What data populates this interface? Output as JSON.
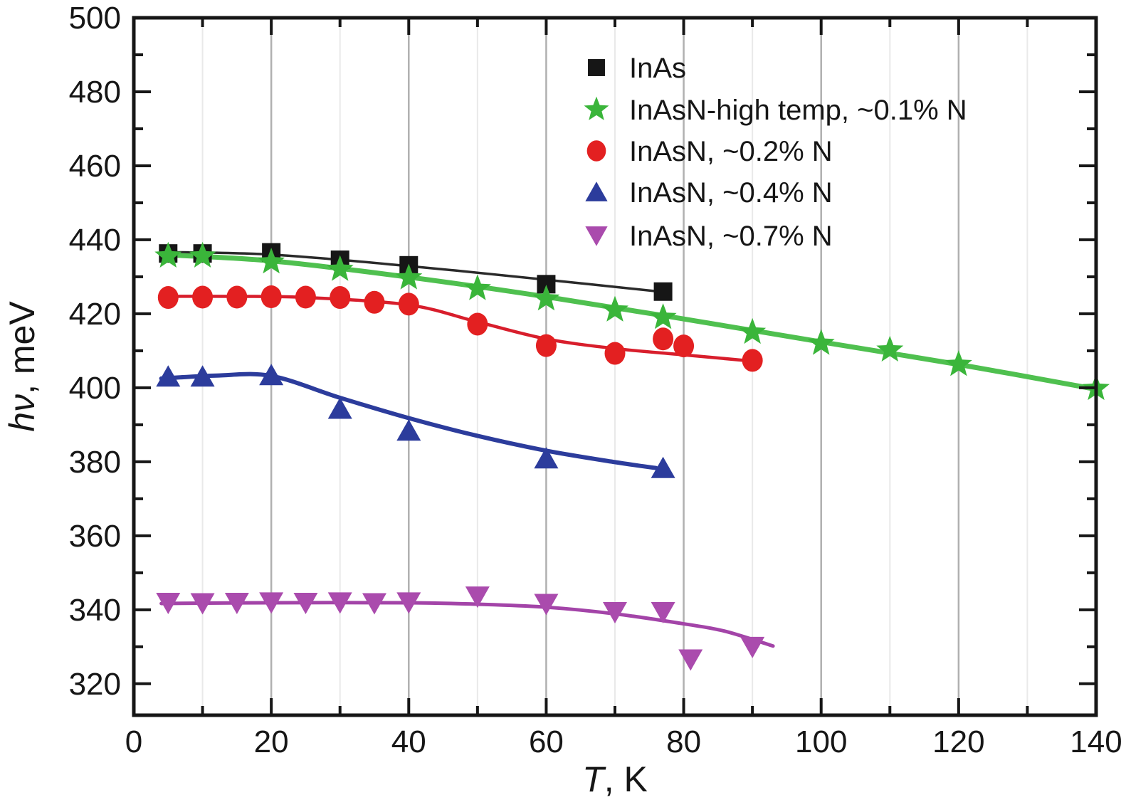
{
  "figure": {
    "background": "#ffffff",
    "axis_color": "#161616",
    "grid_major_color": "#b0b0b0",
    "grid_minor_color": "#e9e9e9"
  },
  "chart_data": {
    "type": "scatter",
    "title": "",
    "xlabel": "T, K",
    "ylabel": "hν, meV",
    "xlabel_parts": {
      "italic": "T",
      "rest": ", K"
    },
    "ylabel_parts": {
      "italic": "hν",
      "rest": ", meV"
    },
    "x_axis": {
      "min": 0,
      "max": 140,
      "major_step": 20,
      "minor_step": 10,
      "tick_labels": [
        "0",
        "20",
        "40",
        "60",
        "80",
        "100",
        "120",
        "140"
      ]
    },
    "y_axis": {
      "min": 311.5,
      "max": 500,
      "major_step": 20,
      "minor_step": 10,
      "tick_labels": [
        "320",
        "340",
        "360",
        "380",
        "400",
        "420",
        "440",
        "460",
        "480",
        "500"
      ]
    },
    "grid": {
      "vertical_major": true,
      "vertical_minor": true,
      "horizontal": false
    },
    "legend_position": "top-right-inside",
    "series": [
      {
        "name": "InAs",
        "legend_label": "InAs",
        "marker": "square",
        "color": "#161616",
        "line_color": "#2a2a2a",
        "line_width": 3.5,
        "points": [
          [
            5,
            436.3
          ],
          [
            10,
            436.3
          ],
          [
            20,
            436.6
          ],
          [
            30,
            434.6
          ],
          [
            40,
            433.1
          ],
          [
            60,
            428.0
          ],
          [
            77,
            426.0
          ]
        ],
        "line": [
          [
            4,
            436.7
          ],
          [
            20,
            436.0
          ],
          [
            40,
            432.9
          ],
          [
            60,
            429.2
          ],
          [
            78,
            425.7
          ]
        ]
      },
      {
        "name": "InAsN-high-temp-0.1N",
        "legend_label": "InAsN-high temp, ~0.1% N",
        "marker": "star",
        "color": "#3ab53a",
        "line_color": "#4fc04f",
        "line_width": 7,
        "points": [
          [
            5,
            435.6
          ],
          [
            10,
            435.6
          ],
          [
            20,
            434.0
          ],
          [
            30,
            432.0
          ],
          [
            40,
            429.7
          ],
          [
            50,
            426.8
          ],
          [
            60,
            424.0
          ],
          [
            70,
            421.0
          ],
          [
            77,
            419.0
          ],
          [
            90,
            415.0
          ],
          [
            100,
            412.0
          ],
          [
            110,
            410.2
          ],
          [
            120,
            406.3
          ],
          [
            140,
            399.8
          ]
        ],
        "line": [
          [
            4,
            436.0
          ],
          [
            20,
            434.3
          ],
          [
            40,
            429.9
          ],
          [
            60,
            424.6
          ],
          [
            80,
            418.6
          ],
          [
            100,
            412.4
          ],
          [
            120,
            406.3
          ],
          [
            140,
            399.6
          ]
        ]
      },
      {
        "name": "InAsN-0.2N",
        "legend_label": "InAsN, ~0.2% N",
        "marker": "circle",
        "color": "#e32021",
        "line_color": "#d81e2c",
        "line_width": 4.5,
        "points": [
          [
            5,
            424.4
          ],
          [
            10,
            424.5
          ],
          [
            15,
            424.5
          ],
          [
            20,
            424.6
          ],
          [
            25,
            424.5
          ],
          [
            30,
            424.4
          ],
          [
            35,
            423.1
          ],
          [
            40,
            422.6
          ],
          [
            50,
            417.2
          ],
          [
            60,
            411.4
          ],
          [
            70,
            409.3
          ],
          [
            77,
            413.2
          ],
          [
            80,
            411.3
          ],
          [
            90,
            407.4
          ]
        ],
        "line": [
          [
            4,
            424.7
          ],
          [
            15,
            424.7
          ],
          [
            25,
            424.4
          ],
          [
            40,
            422.4
          ],
          [
            50,
            417.8
          ],
          [
            60,
            413.2
          ],
          [
            70,
            410.6
          ],
          [
            80,
            408.9
          ],
          [
            90,
            407.2
          ]
        ]
      },
      {
        "name": "InAsN-0.4N",
        "legend_label": "InAsN, ~0.4% N",
        "marker": "triangle-up",
        "color": "#2c3c9c",
        "line_color": "#2c3c9c",
        "line_width": 6,
        "points": [
          [
            5,
            403.0
          ],
          [
            10,
            403.0
          ],
          [
            20,
            403.4
          ],
          [
            30,
            394.3
          ],
          [
            40,
            388.4
          ],
          [
            60,
            380.9
          ],
          [
            77,
            378.3
          ]
        ],
        "line": [
          [
            4,
            402.5
          ],
          [
            12,
            403.3
          ],
          [
            20,
            403.2
          ],
          [
            30,
            397.3
          ],
          [
            40,
            391.8
          ],
          [
            50,
            387.0
          ],
          [
            60,
            383.0
          ],
          [
            70,
            379.9
          ],
          [
            76,
            378.3
          ]
        ]
      },
      {
        "name": "InAsN-0.7N",
        "legend_label": "InAsN, ~0.7% N",
        "marker": "triangle-down",
        "color": "#aa4bad",
        "line_color": "#a344a8",
        "line_width": 5,
        "points": [
          [
            5,
            341.9
          ],
          [
            10,
            341.8
          ],
          [
            15,
            341.9
          ],
          [
            20,
            342.0
          ],
          [
            25,
            341.9
          ],
          [
            30,
            342.0
          ],
          [
            35,
            341.8
          ],
          [
            40,
            342.0
          ],
          [
            50,
            343.6
          ],
          [
            60,
            341.6
          ],
          [
            70,
            339.4
          ],
          [
            77,
            339.4
          ],
          [
            81,
            326.6
          ],
          [
            90,
            330.0
          ]
        ],
        "line": [
          [
            4,
            341.7
          ],
          [
            20,
            341.9
          ],
          [
            40,
            341.9
          ],
          [
            50,
            341.5
          ],
          [
            60,
            340.7
          ],
          [
            70,
            338.9
          ],
          [
            80,
            336.2
          ],
          [
            86,
            334.2
          ],
          [
            93,
            330.2
          ]
        ]
      }
    ]
  }
}
